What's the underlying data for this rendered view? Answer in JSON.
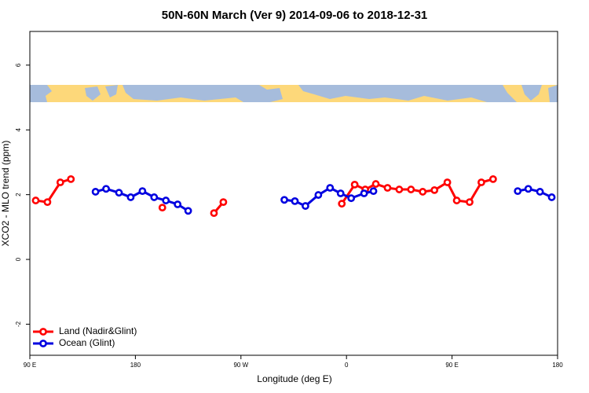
{
  "chart_data": {
    "type": "line",
    "title": "50N-60N March (Ver 9)   2014-09-06 to 2018-12-31",
    "x_label": "Longitude (deg E)",
    "y_label": "XCO2 - MLO trend (ppm)",
    "xlim": [
      -270,
      180
    ],
    "xticks": [
      {
        "value": -270,
        "label": "90 E"
      },
      {
        "value": -180,
        "label": "180"
      },
      {
        "value": -90,
        "label": "90 W"
      },
      0,
      {
        "value": 90,
        "label": "90 E"
      },
      180
    ],
    "ylim": [
      -2.96,
      7.04
    ],
    "yticks": [
      -2,
      0,
      2,
      4,
      6
    ],
    "legend": "bottom-left",
    "series": [
      {
        "name": "Land (Nadir&Glint)",
        "color": "#ff0000",
        "x": [
          -265,
          -255,
          -244,
          -235,
          null,
          -157,
          null,
          -113,
          -105,
          null,
          -4,
          7,
          16,
          25,
          35,
          45,
          55,
          65,
          75,
          86,
          94,
          105,
          115,
          125
        ],
        "values": [
          1.82,
          1.77,
          2.38,
          2.48,
          null,
          1.6,
          null,
          1.43,
          1.77,
          null,
          1.72,
          2.31,
          2.16,
          2.33,
          2.21,
          2.16,
          2.16,
          2.09,
          2.14,
          2.38,
          1.82,
          1.77,
          2.38,
          2.48
        ]
      },
      {
        "name": "Ocean (Glint)",
        "color": "#0000e0",
        "x": [
          -214,
          -205,
          -194,
          -184,
          -174,
          -164,
          -154,
          -144,
          -135,
          null,
          -53,
          -44,
          -35,
          -24,
          -14,
          -5,
          4,
          15,
          23,
          null,
          146,
          155,
          165,
          175
        ],
        "values": [
          2.09,
          2.18,
          2.06,
          1.92,
          2.11,
          1.92,
          1.82,
          1.7,
          1.5,
          null,
          1.84,
          1.8,
          1.65,
          1.99,
          2.21,
          2.04,
          1.89,
          2.04,
          2.11,
          null,
          2.11,
          2.18,
          2.09,
          1.92
        ]
      }
    ]
  }
}
